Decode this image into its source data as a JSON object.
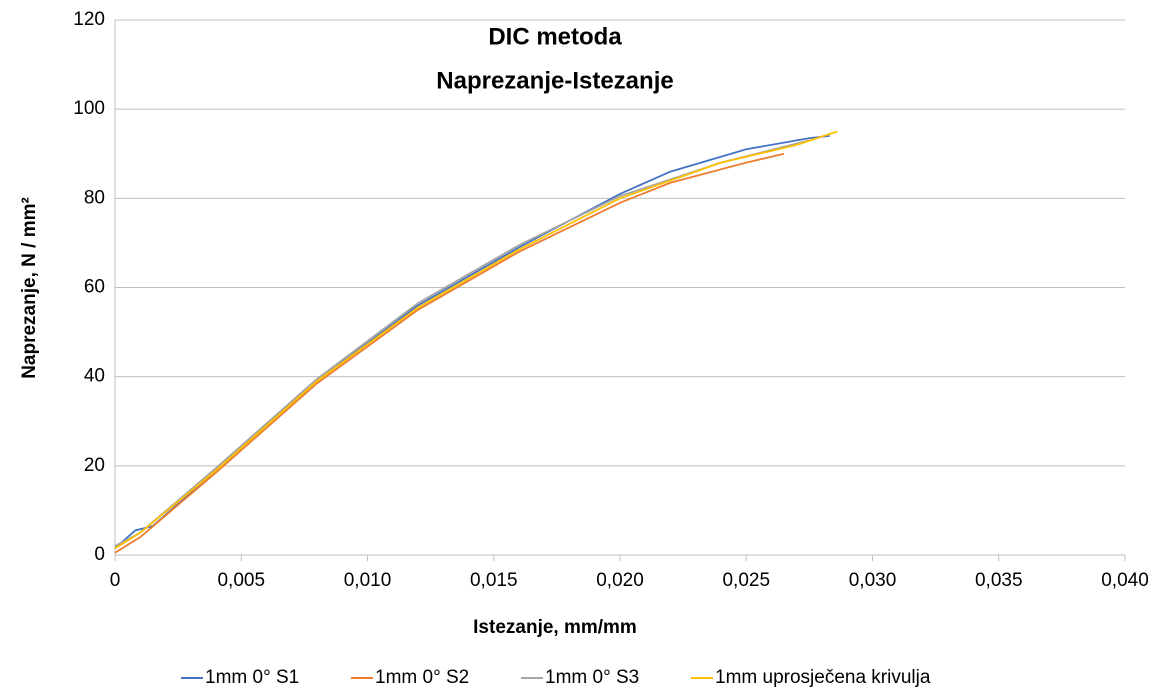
{
  "chart_data": {
    "type": "line",
    "title": "DIC metoda",
    "subtitle": "Naprezanje-Istezanje",
    "x_label": "Istezanje, mm/mm",
    "y_label": "Naprezanje, N / mm²",
    "xlim": [
      0,
      0.04
    ],
    "xticks": [
      0,
      {
        "value": 0.005,
        "label": "0,005"
      },
      {
        "value": 0.01,
        "label": "0,010"
      },
      {
        "value": 0.015,
        "label": "0,015"
      },
      {
        "value": 0.02,
        "label": "0,020"
      },
      {
        "value": 0.025,
        "label": "0,025"
      },
      {
        "value": 0.03,
        "label": "0,030"
      },
      {
        "value": 0.035,
        "label": "0,035"
      },
      {
        "value": 0.04,
        "label": "0,040"
      }
    ],
    "ylim": [
      0,
      120
    ],
    "yticks": [
      0,
      20,
      40,
      60,
      80,
      100,
      120
    ],
    "grid": true,
    "legend": "bottom",
    "series": [
      {
        "name": "1mm 0° S1",
        "color": "#4472c4",
        "x": [
          0,
          0.0008,
          0.0015,
          0.004,
          0.008,
          0.012,
          0.016,
          0.02,
          0.022,
          0.025,
          0.0275,
          0.0283
        ],
        "values": [
          1.5,
          5.5,
          6.5,
          19,
          39,
          56,
          69,
          81,
          86,
          91,
          93.5,
          94
        ]
      },
      {
        "name": "1mm 0° S2",
        "color": "#ed7d31",
        "x": [
          0,
          0.001,
          0.004,
          0.008,
          0.012,
          0.016,
          0.02,
          0.022,
          0.025,
          0.0265
        ],
        "values": [
          0.5,
          4,
          18.5,
          38.5,
          55,
          68,
          79,
          83.5,
          88,
          90
        ]
      },
      {
        "name": "1mm 0° S3",
        "color": "#a5a5a5",
        "x": [
          0,
          0.001,
          0.004,
          0.008,
          0.012,
          0.016,
          0.02,
          0.024,
          0.0275
        ],
        "values": [
          2,
          5,
          19.5,
          39.5,
          56.5,
          69.5,
          80.5,
          88,
          93
        ]
      },
      {
        "name": "1mm uprosječena krivulja",
        "color": "#ffc000",
        "x": [
          0,
          0.001,
          0.004,
          0.008,
          0.012,
          0.016,
          0.02,
          0.024,
          0.027,
          0.0286
        ],
        "values": [
          1.5,
          5,
          19,
          39,
          55.5,
          68.5,
          80,
          88,
          92,
          95
        ]
      }
    ]
  }
}
